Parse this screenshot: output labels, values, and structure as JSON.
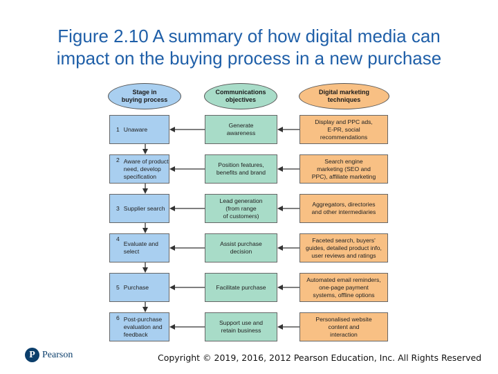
{
  "title": {
    "line1": "Figure 2.10 A summary of how digital media can",
    "line2": "impact on the buying process in a new purchase"
  },
  "headers": {
    "stage": [
      "Stage in",
      "buying process"
    ],
    "comm": [
      "Communications",
      "objectives"
    ],
    "tech": [
      "Digital marketing",
      "techniques"
    ]
  },
  "rows": [
    {
      "num": "1",
      "stage": [
        "Unaware"
      ],
      "comm": [
        "Generate",
        "awareness"
      ],
      "tech": [
        "Display and PPC ads,",
        "E-PR, social",
        "recommendations"
      ]
    },
    {
      "num": "2",
      "stage": [
        "Aware of product",
        "need, develop",
        "specification"
      ],
      "comm": [
        "Position features,",
        "benefits and brand"
      ],
      "tech": [
        "Search engine",
        "marketing (SEO and",
        "PPC), affiliate marketing"
      ]
    },
    {
      "num": "3",
      "stage": [
        "Supplier search"
      ],
      "comm": [
        "Lead generation",
        "(from range",
        "of customers)"
      ],
      "tech": [
        "Aggregators, directories",
        "and other intermediaries"
      ]
    },
    {
      "num": "4",
      "stage": [
        "Evaluate and",
        "select"
      ],
      "comm": [
        "Assist purchase",
        "decision"
      ],
      "tech": [
        "Faceted search, buyers'",
        "guides, detailed product info,",
        "user reviews and ratings"
      ]
    },
    {
      "num": "5",
      "stage": [
        "Purchase"
      ],
      "comm": [
        "Facilitate purchase"
      ],
      "tech": [
        "Automated email reminders,",
        "one-page payment",
        "systems, offline options"
      ]
    },
    {
      "num": "6",
      "stage": [
        "Post-purchase",
        "evaluation and",
        "feedback"
      ],
      "comm": [
        "Support use and",
        "retain business"
      ],
      "tech": [
        "Personalised website",
        "content and",
        "interaction"
      ]
    }
  ],
  "footer": {
    "logo_letter": "P",
    "logo_text": "Pearson",
    "copyright": "Copyright © 2019, 2016, 2012 Pearson Education, Inc. All Rights Reserved"
  },
  "colors": {
    "title": "#1f5fa8",
    "stage": "#a9cff0",
    "comm": "#a8dcc8",
    "tech": "#f8c084"
  }
}
